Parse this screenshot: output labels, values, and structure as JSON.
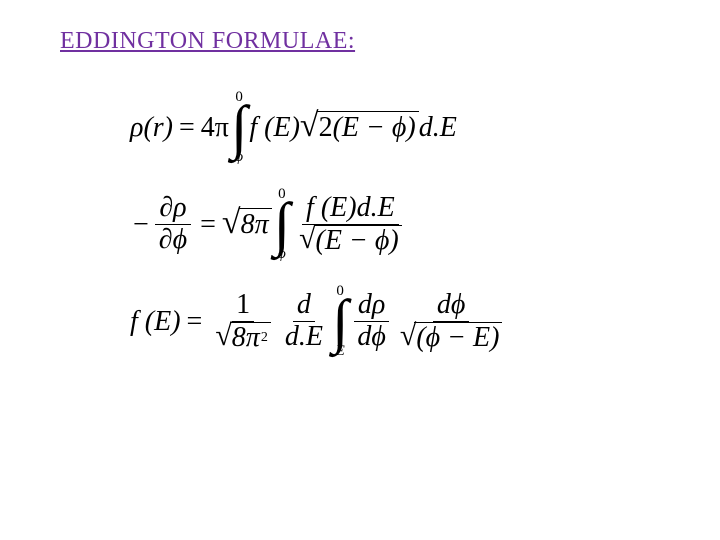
{
  "title": {
    "text": "EDDINGTON FORMULAE:",
    "color": "#7030a0",
    "fontsize": 24
  },
  "symbols": {
    "rho": "ρ",
    "phi": "ϕ",
    "pi": "π",
    "partial": "∂",
    "int": "∫",
    "sqrt": "√",
    "minus": "−",
    "eq": "="
  },
  "formulas": {
    "eq1": {
      "lhs": "ρ(r)",
      "coef": "4π",
      "upper": "0",
      "lower": "ϕ",
      "integrand_f": "f (E)",
      "sqrt_inner_coef": "2",
      "sqrt_inner": "(E − ϕ)",
      "dE": "d.E"
    },
    "eq2": {
      "lhs_num": "∂ρ",
      "lhs_den": "∂ϕ",
      "coef_rad": "8π",
      "upper": "0",
      "lower": "ϕ",
      "num": "f (E)d.E",
      "den_inner": "(E − ϕ)"
    },
    "eq3": {
      "lhs": "f (E)",
      "coef_den_rad": "8π",
      "coef_exp": "2",
      "d_over_dE_num": "d",
      "d_over_dE_den": "d.E",
      "upper": "0",
      "lower": "E",
      "int_num": "dρ",
      "int_den": "dϕ",
      "last_num": "dϕ",
      "last_den_inner": "(ϕ − E)"
    }
  },
  "style": {
    "formula_color": "#000000",
    "formula_fontsize": 28,
    "int_fontsize": 60,
    "limit_fontsize": 15
  }
}
